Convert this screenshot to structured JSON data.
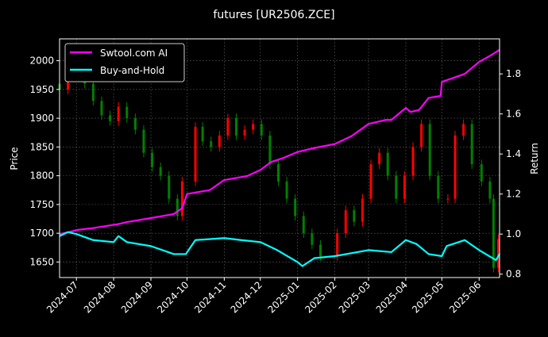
{
  "chart_data": {
    "type": "line",
    "title": "futures [UR2506.ZCE]",
    "ylabel": "Price",
    "y2label": "Return",
    "xlim": [
      "2024-06-17",
      "2025-06-18"
    ],
    "ylim": [
      1623,
      2038
    ],
    "y2lim": [
      0.783,
      1.975
    ],
    "grid": true,
    "legend_position": "top-left",
    "x_ticks": [
      "2024-07",
      "2024-08",
      "2024-09",
      "2024-10",
      "2024-11",
      "2024-12",
      "2025-01",
      "2025-02",
      "2025-03",
      "2025-04",
      "2025-05",
      "2025-06"
    ],
    "y_ticks": [
      1650,
      1700,
      1750,
      1800,
      1850,
      1900,
      1950,
      2000
    ],
    "y2_ticks": [
      "0.8",
      "1.0",
      "1.2",
      "1.4",
      "1.6",
      "1.8"
    ],
    "price": {
      "dates": [
        "2024-06-17",
        "2024-06-24",
        "2024-07-01",
        "2024-07-08",
        "2024-07-15",
        "2024-07-22",
        "2024-07-29",
        "2024-08-05",
        "2024-08-12",
        "2024-08-19",
        "2024-08-26",
        "2024-09-02",
        "2024-09-09",
        "2024-09-16",
        "2024-09-23",
        "2024-09-27",
        "2024-10-08",
        "2024-10-14",
        "2024-10-21",
        "2024-10-28",
        "2024-11-04",
        "2024-11-11",
        "2024-11-18",
        "2024-11-25",
        "2024-12-02",
        "2024-12-09",
        "2024-12-16",
        "2024-12-23",
        "2024-12-30",
        "2025-01-06",
        "2025-01-13",
        "2025-01-20",
        "2025-02-03",
        "2025-02-10",
        "2025-02-17",
        "2025-02-24",
        "2025-03-03",
        "2025-03-10",
        "2025-03-17",
        "2025-03-24",
        "2025-03-31",
        "2025-04-07",
        "2025-04-14",
        "2025-04-21",
        "2025-04-28",
        "2025-05-06",
        "2025-05-12",
        "2025-05-19",
        "2025-05-26",
        "2025-06-03",
        "2025-06-10",
        "2025-06-13",
        "2025-06-17"
      ],
      "close": [
        1950,
        1985,
        1990,
        1960,
        1930,
        1905,
        1895,
        1920,
        1900,
        1880,
        1840,
        1815,
        1800,
        1760,
        1730,
        1790,
        1885,
        1860,
        1850,
        1870,
        1900,
        1870,
        1880,
        1890,
        1870,
        1820,
        1790,
        1760,
        1730,
        1700,
        1680,
        1660,
        1700,
        1740,
        1720,
        1760,
        1820,
        1840,
        1800,
        1760,
        1800,
        1850,
        1890,
        1800,
        1760,
        1760,
        1870,
        1890,
        1820,
        1790,
        1760,
        1640,
        1690
      ]
    },
    "series": [
      {
        "name": "Swtool.com AI",
        "color": "#ff00ff",
        "axis": "right",
        "dates": [
          "2024-06-17",
          "2024-06-25",
          "2024-07-01",
          "2024-07-15",
          "2024-08-05",
          "2024-08-12",
          "2024-09-01",
          "2024-09-20",
          "2024-09-27",
          "2024-10-01",
          "2024-10-20",
          "2024-11-01",
          "2024-11-20",
          "2024-12-01",
          "2024-12-10",
          "2024-12-20",
          "2025-01-01",
          "2025-01-15",
          "2025-02-01",
          "2025-02-15",
          "2025-03-01",
          "2025-03-15",
          "2025-03-20",
          "2025-04-01",
          "2025-04-05",
          "2025-04-12",
          "2025-04-20",
          "2025-04-30",
          "2025-05-01",
          "2025-05-20",
          "2025-06-01",
          "2025-06-10",
          "2025-06-18"
        ],
        "values": [
          1.0,
          1.01,
          1.02,
          1.03,
          1.05,
          1.06,
          1.08,
          1.1,
          1.13,
          1.2,
          1.22,
          1.27,
          1.29,
          1.32,
          1.36,
          1.38,
          1.41,
          1.43,
          1.45,
          1.49,
          1.55,
          1.57,
          1.57,
          1.63,
          1.61,
          1.62,
          1.68,
          1.69,
          1.76,
          1.8,
          1.86,
          1.89,
          1.92
        ]
      },
      {
        "name": "Buy-and-Hold",
        "color": "#00ffff",
        "axis": "right",
        "dates": [
          "2024-06-17",
          "2024-06-24",
          "2024-07-01",
          "2024-07-15",
          "2024-08-01",
          "2024-08-05",
          "2024-08-12",
          "2024-09-01",
          "2024-09-20",
          "2024-09-30",
          "2024-10-08",
          "2024-11-01",
          "2024-11-15",
          "2024-12-01",
          "2024-12-15",
          "2025-01-01",
          "2025-01-05",
          "2025-01-15",
          "2025-02-01",
          "2025-03-01",
          "2025-03-20",
          "2025-04-01",
          "2025-04-10",
          "2025-04-20",
          "2025-05-01",
          "2025-05-05",
          "2025-05-20",
          "2025-06-01",
          "2025-06-15",
          "2025-06-18"
        ],
        "values": [
          0.99,
          1.01,
          1.0,
          0.97,
          0.96,
          0.99,
          0.96,
          0.94,
          0.9,
          0.9,
          0.97,
          0.98,
          0.97,
          0.96,
          0.92,
          0.86,
          0.84,
          0.88,
          0.89,
          0.92,
          0.91,
          0.97,
          0.95,
          0.9,
          0.89,
          0.94,
          0.97,
          0.92,
          0.87,
          0.9
        ]
      }
    ],
    "candle_colors": {
      "up": "#ff0000",
      "down": "#008000"
    }
  }
}
